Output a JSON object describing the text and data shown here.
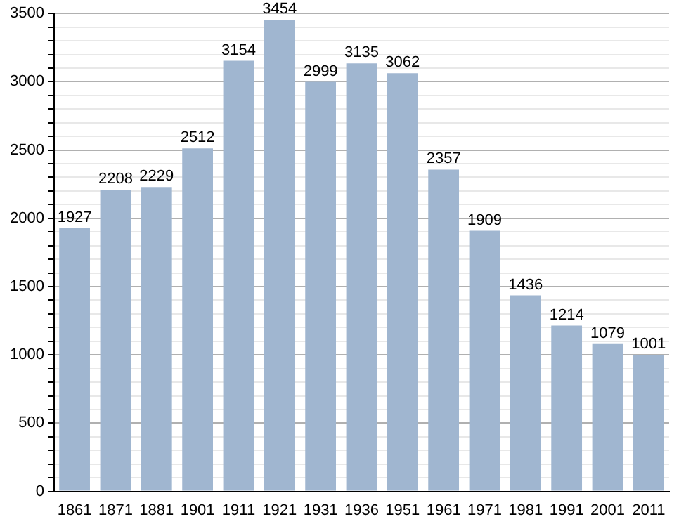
{
  "chart_data": {
    "type": "bar",
    "categories": [
      "1861",
      "1871",
      "1881",
      "1901",
      "1911",
      "1921",
      "1931",
      "1936",
      "1951",
      "1961",
      "1971",
      "1981",
      "1991",
      "2001",
      "2011"
    ],
    "values": [
      1927,
      2208,
      2229,
      2512,
      3154,
      3454,
      2999,
      3135,
      3062,
      2357,
      1909,
      1436,
      1214,
      1079,
      1001
    ],
    "color": "#a0b6d0",
    "data_labels": true,
    "grid": "y",
    "ylim": [
      0,
      3500
    ],
    "yticks": [
      0,
      {
        "value": 100,
        "label": null
      },
      {
        "value": 200,
        "label": null
      },
      {
        "value": 300,
        "label": null
      },
      {
        "value": 400,
        "label": null
      },
      500,
      {
        "value": 600,
        "label": null
      },
      {
        "value": 700,
        "label": null
      },
      {
        "value": 800,
        "label": null
      },
      {
        "value": 900,
        "label": null
      },
      1000,
      {
        "value": 1100,
        "label": null
      },
      {
        "value": 1200,
        "label": null
      },
      {
        "value": 1300,
        "label": null
      },
      {
        "value": 1400,
        "label": null
      },
      1500,
      {
        "value": 1600,
        "label": null
      },
      {
        "value": 1700,
        "label": null
      },
      {
        "value": 1800,
        "label": null
      },
      {
        "value": 1900,
        "label": null
      },
      2000,
      {
        "value": 2100,
        "label": null
      },
      {
        "value": 2200,
        "label": null
      },
      {
        "value": 2300,
        "label": null
      },
      {
        "value": 2400,
        "label": null
      },
      2500,
      {
        "value": 2600,
        "label": null
      },
      {
        "value": 2700,
        "label": null
      },
      {
        "value": 2800,
        "label": null
      },
      {
        "value": 2900,
        "label": null
      },
      3000,
      {
        "value": 3100,
        "label": null
      },
      {
        "value": 3200,
        "label": null
      },
      {
        "value": 3300,
        "label": null
      },
      {
        "value": 3400,
        "label": null
      },
      3500
    ]
  }
}
